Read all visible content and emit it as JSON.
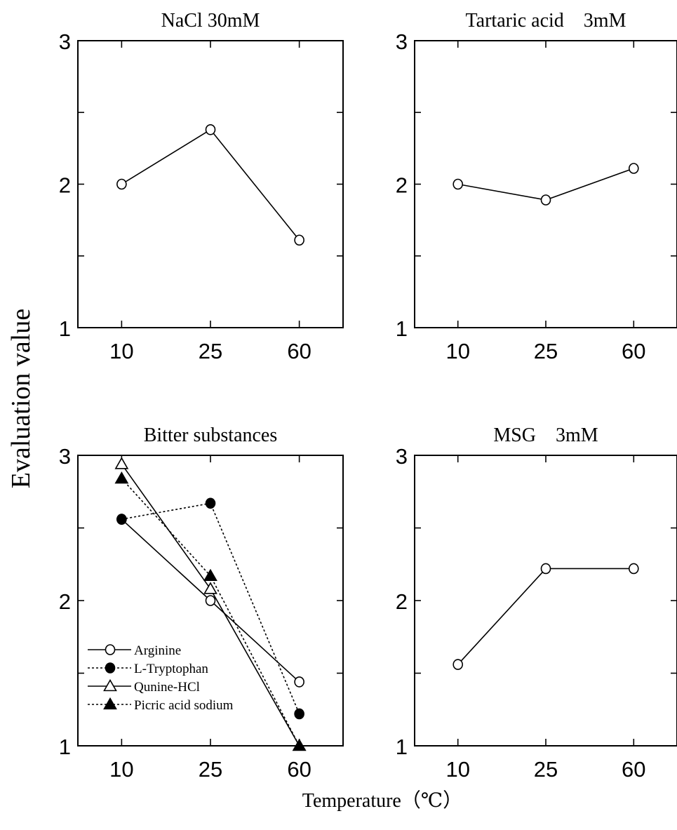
{
  "shared_axes": {
    "ylabel": "Evaluation value",
    "xlabel": "Temperature（℃）"
  },
  "chart_data": [
    {
      "type": "line",
      "title": "NaCl 30mM",
      "categories": [
        "10",
        "25",
        "60"
      ],
      "ylim": [
        1,
        3
      ],
      "yticks": [
        "1",
        "2",
        "3"
      ],
      "grid": false,
      "series": [
        {
          "values": [
            2.0,
            2.38,
            1.61
          ],
          "marker": "open-circle",
          "dash": false
        }
      ]
    },
    {
      "type": "line",
      "title": "Tartaric acid　3mM",
      "categories": [
        "10",
        "25",
        "60"
      ],
      "ylim": [
        1,
        3
      ],
      "yticks": [
        "1",
        "2",
        "3"
      ],
      "grid": false,
      "series": [
        {
          "values": [
            2.0,
            1.89,
            2.11
          ],
          "marker": "open-circle",
          "dash": false
        }
      ]
    },
    {
      "type": "line",
      "title": "Bitter substances",
      "categories": [
        "10",
        "25",
        "60"
      ],
      "ylim": [
        1,
        3
      ],
      "yticks": [
        "1",
        "2",
        "3"
      ],
      "grid": false,
      "legend_position": "bottom-left",
      "series": [
        {
          "name": "Arginine",
          "values": [
            2.56,
            2.0,
            1.44
          ],
          "marker": "open-circle",
          "dash": false
        },
        {
          "name": "L-Tryptophan",
          "values": [
            2.56,
            2.67,
            1.22
          ],
          "marker": "filled-circle",
          "dash": true
        },
        {
          "name": "Qunine-HCl",
          "values": [
            2.94,
            2.08,
            1.0
          ],
          "marker": "open-triangle",
          "dash": false
        },
        {
          "name": "Picric acid sodium",
          "values": [
            2.84,
            2.17,
            1.0
          ],
          "marker": "filled-triangle",
          "dash": true
        }
      ]
    },
    {
      "type": "line",
      "title": "MSG　3mM",
      "categories": [
        "10",
        "25",
        "60"
      ],
      "ylim": [
        1,
        3
      ],
      "yticks": [
        "1",
        "2",
        "3"
      ],
      "grid": false,
      "series": [
        {
          "values": [
            1.56,
            2.22,
            2.22
          ],
          "marker": "open-circle",
          "dash": false
        }
      ]
    }
  ]
}
